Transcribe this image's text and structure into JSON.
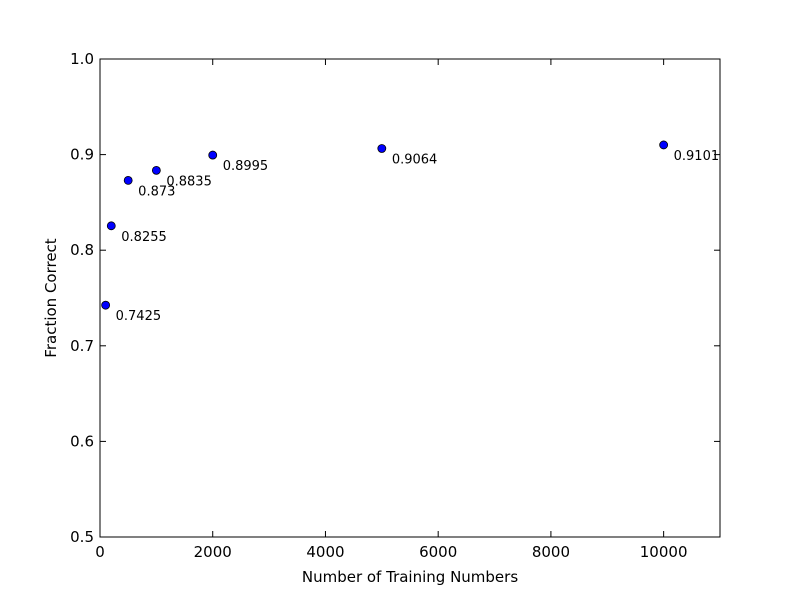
{
  "chart_data": {
    "type": "scatter",
    "title": "",
    "xlabel": "Number of Training Numbers",
    "ylabel": "Fraction Correct",
    "xlim": [
      0,
      11000
    ],
    "ylim": [
      0.5,
      1.0
    ],
    "xticks": [
      0,
      2000,
      4000,
      6000,
      8000,
      10000
    ],
    "xtick_labels": [
      "0",
      "2000",
      "4000",
      "6000",
      "8000",
      "10000"
    ],
    "yticks": [
      0.5,
      0.6,
      0.7,
      0.8,
      0.9,
      1.0
    ],
    "ytick_labels": [
      "0.5",
      "0.6",
      "0.7",
      "0.8",
      "0.9",
      "1.0"
    ],
    "grid": false,
    "legend": "none",
    "marker_color": "#0000ff",
    "points": [
      {
        "x": 100,
        "y": 0.7425,
        "label": "0.7425"
      },
      {
        "x": 200,
        "y": 0.8255,
        "label": "0.8255"
      },
      {
        "x": 500,
        "y": 0.873,
        "label": "0.873"
      },
      {
        "x": 1000,
        "y": 0.8835,
        "label": "0.8835"
      },
      {
        "x": 2000,
        "y": 0.8995,
        "label": "0.8995"
      },
      {
        "x": 5000,
        "y": 0.9064,
        "label": "0.9064"
      },
      {
        "x": 10000,
        "y": 0.9101,
        "label": "0.9101"
      }
    ]
  }
}
